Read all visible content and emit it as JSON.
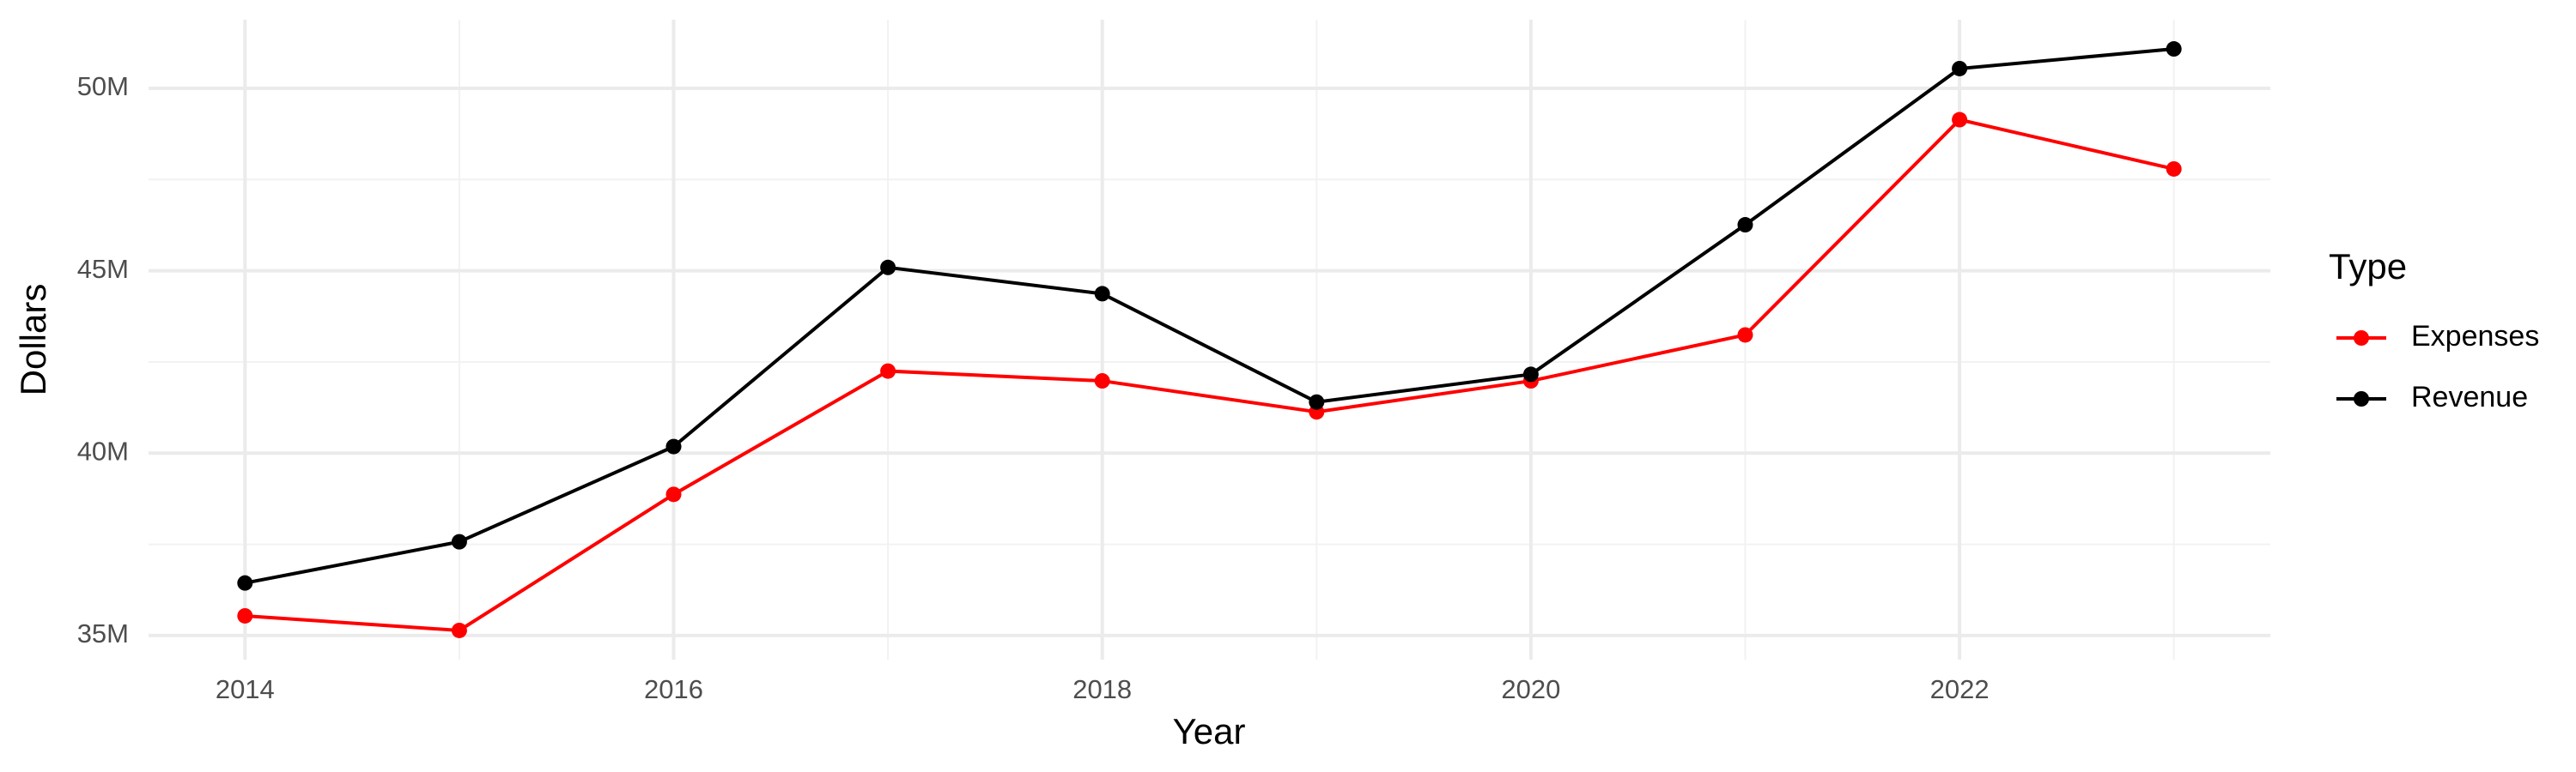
{
  "chart_data": {
    "type": "line",
    "x_label": "Year",
    "y_label": "Dollars",
    "legend_title": "Type",
    "x": [
      2014,
      2015,
      2016,
      2017,
      2018,
      2019,
      2020,
      2021,
      2022,
      2023
    ],
    "series": [
      {
        "name": "Expenses",
        "color": "#ff0000",
        "values": [
          35540000,
          35140000,
          38870000,
          42250000,
          41980000,
          41130000,
          41980000,
          43240000,
          49140000,
          47790000
        ]
      },
      {
        "name": "Revenue",
        "color": "#000000",
        "values": [
          36440000,
          37570000,
          40180000,
          45090000,
          44370000,
          41400000,
          42160000,
          46260000,
          50540000,
          51080000
        ]
      }
    ],
    "xlim": [
      2013.55,
      2023.45
    ],
    "xticks": [
      2014,
      2016,
      2018,
      2020,
      2022
    ],
    "ylim": [
      34340000,
      51880000
    ],
    "yticks": [
      {
        "value": 35000000,
        "label": "35M"
      },
      {
        "value": 40000000,
        "label": "40M"
      },
      {
        "value": 45000000,
        "label": "45M"
      },
      {
        "value": 50000000,
        "label": "50M"
      }
    ],
    "grid": true,
    "legend": "right"
  }
}
